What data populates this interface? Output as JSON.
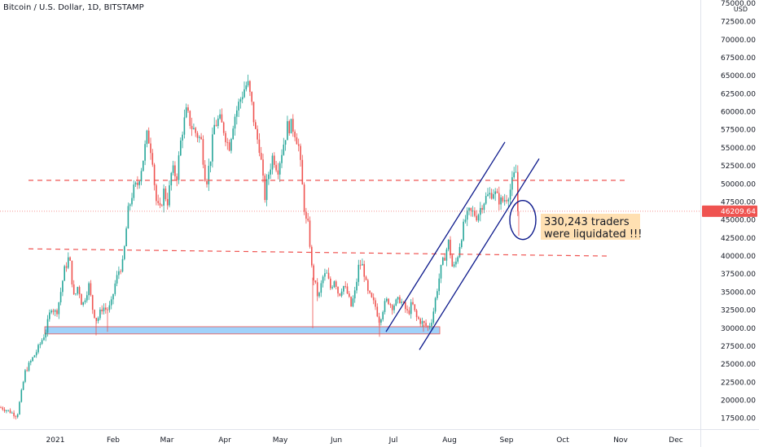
{
  "header": {
    "title": "Bitcoin / U.S. Dollar, 1D, BITSTAMP",
    "currency": "USD"
  },
  "chart_data": {
    "type": "candlestick",
    "y_ticks": [
      17500,
      20000,
      22500,
      25000,
      27500,
      30000,
      32500,
      35000,
      37500,
      40000,
      42500,
      45000,
      47500,
      50000,
      52500,
      55000,
      57500,
      60000,
      62500,
      65000,
      67500,
      70000,
      72500,
      75000
    ],
    "y_tick_labels": [
      "17500.00",
      "20000.00",
      "22500.00",
      "25000.00",
      "27500.00",
      "30000.00",
      "32500.00",
      "35000.00",
      "37500.00",
      "40000.00",
      "42500.00",
      "45000.00",
      "47500.00",
      "50000.00",
      "52500.00",
      "55000.00",
      "57500.00",
      "60000.00",
      "62500.00",
      "65000.00",
      "67500.00",
      "70000.00",
      "72500.00",
      "75000.00"
    ],
    "x_ticks": [
      "2021",
      "Feb",
      "Mar",
      "Apr",
      "May",
      "Jun",
      "Jul",
      "Aug",
      "Sep",
      "Oct",
      "Nov",
      "Dec"
    ],
    "last_price": "46209.64",
    "ylim": [
      16000,
      75500
    ],
    "colors": {
      "up": "#26a69a",
      "down": "#ef5350",
      "support_zone": "#90caf9",
      "channel": "#0d1a8c",
      "dashed": "#ef5350"
    },
    "annotation": {
      "line1": "330,243 traders",
      "line2": "were liquidated !!!",
      "bg": "#ffe0b2"
    },
    "support_zone": {
      "low": 29200,
      "high": 30200
    },
    "resistance_levels": [
      50500,
      40500
    ]
  }
}
